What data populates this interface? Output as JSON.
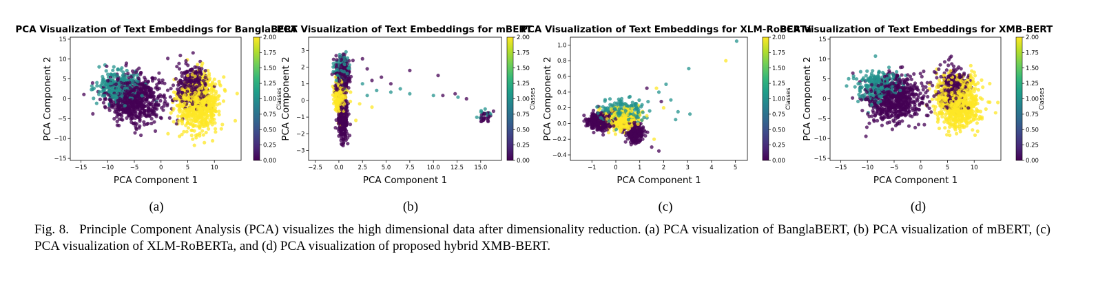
{
  "chart_data": [
    {
      "type": "scatter",
      "title": "PCA Visualization of Text Embeddings for BanglaBERT",
      "xlabel": "PCA Component 1",
      "ylabel": "PCA Component 2",
      "xlim": [
        -17,
        15
      ],
      "ylim": [
        -15.5,
        15.5
      ],
      "xticks": [
        -15,
        -10,
        -5,
        0,
        5,
        10
      ],
      "yticks": [
        -15,
        -10,
        -5,
        0,
        5,
        10,
        15
      ],
      "colorbar": {
        "label": "Classes",
        "range": [
          0.0,
          2.0
        ],
        "ticks": [
          "0.00",
          "0.25",
          "0.50",
          "0.75",
          "1.00",
          "1.25",
          "1.50",
          "1.75",
          "2.00"
        ],
        "colormap": "viridis"
      },
      "grid": false,
      "clusters": [
        {
          "class": 0,
          "center": [
            -5,
            0
          ],
          "spread": [
            4.5,
            5
          ],
          "count": 650
        },
        {
          "class": 0,
          "center": [
            6,
            3
          ],
          "spread": [
            2.5,
            4.5
          ],
          "count": 300
        },
        {
          "class": 1,
          "center": [
            -8,
            3
          ],
          "spread": [
            3.5,
            3.5
          ],
          "count": 250
        },
        {
          "class": 2,
          "center": [
            7,
            -1
          ],
          "spread": [
            3.2,
            5.5
          ],
          "count": 750
        }
      ],
      "sub_label": "(a)"
    },
    {
      "type": "scatter",
      "title": "PCA Visualization of Text Embeddings for mBERT",
      "xlabel": "PCA Component 1",
      "ylabel": "PCA Component 2",
      "xlim": [
        -3.2,
        17.2
      ],
      "ylim": [
        -3.6,
        3.8
      ],
      "xticks": [
        "-2.5",
        "0.0",
        "2.5",
        "5.0",
        "7.5",
        "10.0",
        "12.5",
        "15.0"
      ],
      "xtick_values": [
        -2.5,
        0,
        2.5,
        5,
        7.5,
        10,
        12.5,
        15
      ],
      "yticks": [
        -3,
        -2,
        -1,
        0,
        1,
        2,
        3
      ],
      "colorbar": {
        "label": "Classes",
        "range": [
          0.0,
          2.0
        ],
        "ticks": [
          "0.00",
          "0.25",
          "0.50",
          "0.75",
          "1.00",
          "1.25",
          "1.50",
          "1.75",
          "2.00"
        ],
        "colormap": "viridis"
      },
      "grid": false,
      "clusters": [
        {
          "class": 0,
          "center": [
            0.4,
            1.5
          ],
          "spread": [
            0.6,
            0.9
          ],
          "count": 300
        },
        {
          "class": 0,
          "center": [
            0.4,
            -1.2
          ],
          "spread": [
            0.45,
            1.1
          ],
          "count": 250
        },
        {
          "class": 2,
          "center": [
            0.1,
            0.2
          ],
          "spread": [
            0.5,
            0.8
          ],
          "count": 220
        },
        {
          "class": 1,
          "center": [
            0.3,
            1.8
          ],
          "spread": [
            0.6,
            0.7
          ],
          "count": 120
        },
        {
          "class": 0,
          "center": [
            15.6,
            -0.9
          ],
          "spread": [
            0.6,
            0.25
          ],
          "count": 25
        },
        {
          "class": 1,
          "center": [
            15.4,
            -0.8
          ],
          "spread": [
            0.7,
            0.3
          ],
          "count": 12
        }
      ],
      "outliers": [
        {
          "class": 0,
          "points": [
            [
              3.5,
              1.2
            ],
            [
              4.5,
              1.4
            ],
            [
              7.5,
              1.8
            ],
            [
              10.5,
              1.5
            ],
            [
              11.0,
              0.3
            ],
            [
              12.3,
              0.4
            ],
            [
              13.5,
              0.1
            ],
            [
              2.5,
              2.5
            ],
            [
              3.0,
              1.9
            ],
            [
              5.5,
              1.0
            ]
          ]
        },
        {
          "class": 1,
          "points": [
            [
              4.0,
              0.6
            ],
            [
              5.5,
              0.5
            ],
            [
              6.5,
              0.7
            ],
            [
              7.5,
              0.4
            ],
            [
              10.0,
              0.3
            ],
            [
              12.6,
              0.2
            ],
            [
              2.5,
              1.0
            ],
            [
              3.0,
              0.3
            ]
          ]
        },
        {
          "class": 2,
          "points": [
            [
              2.2,
              -0.2
            ],
            [
              3.5,
              -0.4
            ],
            [
              1.8,
              -1.2
            ]
          ]
        }
      ],
      "sub_label": "(b)"
    },
    {
      "type": "scatter",
      "title": "PCA Visualization of Text Embeddings for XLM-RoBERTa",
      "xlabel": "PCA Component 1",
      "ylabel": "PCA Component 2",
      "xlim": [
        -1.9,
        5.5
      ],
      "ylim": [
        -0.47,
        1.1
      ],
      "xticks": [
        -1,
        0,
        1,
        2,
        3,
        4,
        5
      ],
      "yticks": [
        "-0.4",
        "-0.2",
        "0.0",
        "0.2",
        "0.4",
        "0.6",
        "0.8",
        "1.0"
      ],
      "ytick_values": [
        -0.4,
        -0.2,
        0,
        0.2,
        0.4,
        0.6,
        0.8,
        1.0
      ],
      "colorbar": {
        "label": "Classes",
        "range": [
          0.0,
          2.0
        ],
        "ticks": [
          "0.00",
          "0.25",
          "0.50",
          "0.75",
          "1.00",
          "1.25",
          "1.50",
          "1.75",
          "2.00"
        ],
        "colormap": "viridis"
      },
      "grid": false,
      "clusters": [
        {
          "class": 0,
          "center": [
            -0.6,
            0.03
          ],
          "spread": [
            0.45,
            0.09
          ],
          "count": 380
        },
        {
          "class": 0,
          "center": [
            0.8,
            -0.12
          ],
          "spread": [
            0.3,
            0.1
          ],
          "count": 200
        },
        {
          "class": 2,
          "center": [
            0.2,
            0.05
          ],
          "spread": [
            0.55,
            0.11
          ],
          "count": 450
        },
        {
          "class": 1,
          "center": [
            0.3,
            0.15
          ],
          "spread": [
            0.75,
            0.13
          ],
          "count": 200
        }
      ],
      "outliers": [
        {
          "class": 1,
          "points": [
            [
              5.05,
              1.05
            ],
            [
              3.05,
              0.7
            ],
            [
              2.3,
              0.3
            ],
            [
              2.6,
              0.15
            ],
            [
              2.1,
              0.5
            ],
            [
              1.8,
              0.4
            ],
            [
              3.1,
              0.12
            ],
            [
              2.5,
              0.05
            ]
          ]
        },
        {
          "class": 2,
          "points": [
            [
              4.6,
              0.8
            ],
            [
              2.0,
              0.2
            ],
            [
              1.7,
              0.45
            ],
            [
              1.6,
              -0.2
            ]
          ]
        },
        {
          "class": 0,
          "points": [
            [
              1.9,
              0.28
            ],
            [
              1.3,
              0.45
            ],
            [
              1.5,
              -0.3
            ],
            [
              1.8,
              -0.35
            ]
          ]
        }
      ],
      "sub_label": "(c)"
    },
    {
      "type": "scatter",
      "title": "PCA Visualization of Text Embeddings for XMB-BERT",
      "xlabel": "PCA Component 1",
      "ylabel": "PCA Component 2",
      "xlim": [
        -17,
        15
      ],
      "ylim": [
        -15.5,
        15.5
      ],
      "xticks": [
        -15,
        -10,
        -5,
        0,
        5,
        10
      ],
      "yticks": [
        -15,
        -10,
        -5,
        0,
        5,
        10,
        15
      ],
      "colorbar": {
        "label": "Classes",
        "range": [
          0.0,
          2.0
        ],
        "ticks": [
          "0.00",
          "0.25",
          "0.50",
          "0.75",
          "1.00",
          "1.25",
          "1.50",
          "1.75",
          "2.00"
        ],
        "colormap": "viridis"
      },
      "grid": false,
      "clusters": [
        {
          "class": 0,
          "center": [
            -5,
            0
          ],
          "spread": [
            4.5,
            5
          ],
          "count": 650
        },
        {
          "class": 0,
          "center": [
            6,
            3
          ],
          "spread": [
            2.5,
            4.5
          ],
          "count": 300
        },
        {
          "class": 1,
          "center": [
            -8,
            3
          ],
          "spread": [
            3.5,
            3.5
          ],
          "count": 250
        },
        {
          "class": 2,
          "center": [
            7,
            -1
          ],
          "spread": [
            3.2,
            5.5
          ],
          "count": 750
        }
      ],
      "sub_label": "(d)"
    }
  ],
  "caption": "Fig. 8.  Principle Component Analysis (PCA) visualizes the high dimensional data after dimensionality reduction. (a) PCA visualization of BanglaBERT, (b) PCA visualization of mBERT, (c) PCA visualization of XLM-RoBERTa, and (d) PCA visualization of proposed hybrid XMB-BERT.",
  "colors": {
    "class0": "#440154",
    "class1": "#21918c",
    "class2": "#fde725"
  }
}
